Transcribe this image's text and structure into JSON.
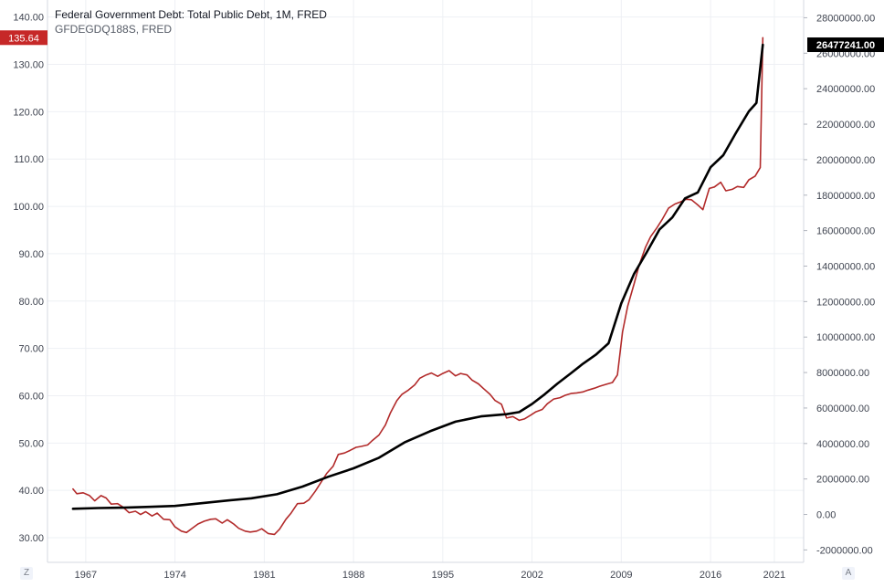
{
  "legend": {
    "line1": "Federal Government Debt: Total Public Debt, 1M, FRED",
    "line2": "GFDEGDQ188S, FRED"
  },
  "corner": {
    "left": "Z",
    "right": "A"
  },
  "colors": {
    "left_series": "#b22a2a",
    "right_series": "#000000",
    "grid": "#eef0f4",
    "axis_text": "#3f4450",
    "left_badge": "#c62828",
    "right_badge": "#000000"
  },
  "chart_data": {
    "type": "line",
    "xlabel": "",
    "ylabel": "",
    "x_ticks": [
      "1967",
      "1974",
      "1981",
      "1988",
      "1995",
      "2002",
      "2009",
      "2016",
      "2021"
    ],
    "x_tick_values": [
      1967,
      1974,
      1981,
      1988,
      1995,
      2002,
      2009,
      2016,
      2021
    ],
    "xlim": [
      1964.0,
      2023.3
    ],
    "left_axis": {
      "ylim": [
        24.8,
        143.6
      ],
      "ticks": [
        "30.00",
        "40.00",
        "50.00",
        "60.00",
        "70.00",
        "80.00",
        "90.00",
        "100.00",
        "110.00",
        "120.00",
        "130.00",
        "140.00"
      ],
      "tick_values": [
        30,
        40,
        50,
        60,
        70,
        80,
        90,
        100,
        110,
        120,
        130,
        140
      ],
      "last_value_label": "135.64",
      "last_value": 135.64
    },
    "right_axis": {
      "ylim": [
        -2700000,
        29000000
      ],
      "ticks": [
        "-2000000.00",
        "0.00",
        "2000000.00",
        "4000000.00",
        "6000000.00",
        "8000000.00",
        "10000000.00",
        "12000000.00",
        "14000000.00",
        "16000000.00",
        "18000000.00",
        "20000000.00",
        "22000000.00",
        "24000000.00",
        "26000000.00",
        "28000000.00"
      ],
      "tick_values": [
        -2000000,
        0,
        2000000,
        4000000,
        6000000,
        8000000,
        10000000,
        12000000,
        14000000,
        16000000,
        18000000,
        20000000,
        22000000,
        24000000,
        26000000,
        28000000
      ],
      "last_value_label": "26477241.00",
      "last_value": 26477241
    },
    "series": [
      {
        "axis": "left",
        "points": [
          [
            1966.0,
            40.3
          ],
          [
            1966.3,
            39.3
          ],
          [
            1966.8,
            39.5
          ],
          [
            1967.3,
            38.9
          ],
          [
            1967.7,
            37.8
          ],
          [
            1968.2,
            38.9
          ],
          [
            1968.6,
            38.4
          ],
          [
            1969.0,
            37.1
          ],
          [
            1969.5,
            37.2
          ],
          [
            1969.9,
            36.5
          ],
          [
            1970.4,
            35.3
          ],
          [
            1970.9,
            35.6
          ],
          [
            1971.3,
            34.9
          ],
          [
            1971.7,
            35.5
          ],
          [
            1972.2,
            34.6
          ],
          [
            1972.6,
            35.2
          ],
          [
            1973.1,
            33.9
          ],
          [
            1973.6,
            33.8
          ],
          [
            1974.0,
            32.3
          ],
          [
            1974.5,
            31.4
          ],
          [
            1974.9,
            31.1
          ],
          [
            1975.4,
            32.1
          ],
          [
            1975.8,
            32.9
          ],
          [
            1976.3,
            33.5
          ],
          [
            1976.8,
            33.9
          ],
          [
            1977.2,
            34.0
          ],
          [
            1977.7,
            33.1
          ],
          [
            1978.1,
            33.8
          ],
          [
            1978.6,
            32.9
          ],
          [
            1979.0,
            32.0
          ],
          [
            1979.5,
            31.4
          ],
          [
            1979.9,
            31.2
          ],
          [
            1980.4,
            31.4
          ],
          [
            1980.8,
            31.9
          ],
          [
            1981.3,
            30.9
          ],
          [
            1981.8,
            30.7
          ],
          [
            1982.2,
            31.8
          ],
          [
            1982.7,
            33.9
          ],
          [
            1983.1,
            35.2
          ],
          [
            1983.6,
            37.2
          ],
          [
            1984.1,
            37.3
          ],
          [
            1984.5,
            38.0
          ],
          [
            1985.0,
            39.8
          ],
          [
            1985.4,
            41.5
          ],
          [
            1985.9,
            43.6
          ],
          [
            1986.4,
            45.1
          ],
          [
            1986.8,
            47.6
          ],
          [
            1987.3,
            47.9
          ],
          [
            1987.7,
            48.4
          ],
          [
            1988.2,
            49.1
          ],
          [
            1988.6,
            49.3
          ],
          [
            1989.1,
            49.6
          ],
          [
            1989.5,
            50.6
          ],
          [
            1990.0,
            51.7
          ],
          [
            1990.5,
            53.8
          ],
          [
            1990.9,
            56.4
          ],
          [
            1991.4,
            59.0
          ],
          [
            1991.8,
            60.3
          ],
          [
            1992.3,
            61.2
          ],
          [
            1992.8,
            62.3
          ],
          [
            1993.2,
            63.7
          ],
          [
            1993.7,
            64.4
          ],
          [
            1994.1,
            64.8
          ],
          [
            1994.6,
            64.1
          ],
          [
            1995.0,
            64.7
          ],
          [
            1995.5,
            65.3
          ],
          [
            1996.0,
            64.2
          ],
          [
            1996.4,
            64.7
          ],
          [
            1996.9,
            64.4
          ],
          [
            1997.3,
            63.3
          ],
          [
            1997.8,
            62.5
          ],
          [
            1998.2,
            61.5
          ],
          [
            1998.7,
            60.3
          ],
          [
            1999.1,
            59.0
          ],
          [
            1999.6,
            58.2
          ],
          [
            2000.0,
            55.3
          ],
          [
            2000.5,
            55.6
          ],
          [
            2001.0,
            54.8
          ],
          [
            2001.4,
            55.1
          ],
          [
            2001.9,
            55.9
          ],
          [
            2002.3,
            56.6
          ],
          [
            2002.8,
            57.1
          ],
          [
            2003.2,
            58.3
          ],
          [
            2003.7,
            59.3
          ],
          [
            2004.2,
            59.6
          ],
          [
            2004.6,
            60.1
          ],
          [
            2005.1,
            60.5
          ],
          [
            2005.5,
            60.6
          ],
          [
            2006.0,
            60.8
          ],
          [
            2006.4,
            61.2
          ],
          [
            2006.9,
            61.6
          ],
          [
            2007.3,
            62.0
          ],
          [
            2007.8,
            62.4
          ],
          [
            2008.3,
            62.8
          ],
          [
            2008.7,
            64.4
          ],
          [
            2009.1,
            73.5
          ],
          [
            2009.5,
            78.9
          ],
          [
            2010.0,
            83.6
          ],
          [
            2010.4,
            87.6
          ],
          [
            2010.9,
            91.4
          ],
          [
            2011.3,
            93.6
          ],
          [
            2011.8,
            95.5
          ],
          [
            2012.2,
            97.2
          ],
          [
            2012.7,
            99.6
          ],
          [
            2013.2,
            100.5
          ],
          [
            2013.6,
            100.9
          ],
          [
            2014.1,
            101.5
          ],
          [
            2014.5,
            101.4
          ],
          [
            2015.0,
            100.3
          ],
          [
            2015.4,
            99.3
          ],
          [
            2015.9,
            103.8
          ],
          [
            2016.3,
            104.1
          ],
          [
            2016.8,
            105.1
          ],
          [
            2017.2,
            103.3
          ],
          [
            2017.7,
            103.6
          ],
          [
            2018.1,
            104.2
          ],
          [
            2018.6,
            104.0
          ],
          [
            2019.0,
            105.6
          ],
          [
            2019.5,
            106.4
          ],
          [
            2019.9,
            108.2
          ],
          [
            2020.1,
            135.64
          ]
        ]
      },
      {
        "axis": "right",
        "points": [
          [
            1966.0,
            320000
          ],
          [
            1968.0,
            360000
          ],
          [
            1970.0,
            380000
          ],
          [
            1972.0,
            430000
          ],
          [
            1974.0,
            480000
          ],
          [
            1976.0,
            630000
          ],
          [
            1978.0,
            780000
          ],
          [
            1980.0,
            910000
          ],
          [
            1982.0,
            1140000
          ],
          [
            1984.0,
            1570000
          ],
          [
            1986.0,
            2120000
          ],
          [
            1988.0,
            2600000
          ],
          [
            1990.0,
            3200000
          ],
          [
            1992.0,
            4060000
          ],
          [
            1994.0,
            4690000
          ],
          [
            1996.0,
            5230000
          ],
          [
            1998.0,
            5530000
          ],
          [
            2000.0,
            5650000
          ],
          [
            2001.0,
            5770000
          ],
          [
            2002.0,
            6230000
          ],
          [
            2003.0,
            6780000
          ],
          [
            2004.0,
            7380000
          ],
          [
            2005.0,
            7930000
          ],
          [
            2006.0,
            8500000
          ],
          [
            2007.0,
            9000000
          ],
          [
            2008.0,
            9650000
          ],
          [
            2009.0,
            11900000
          ],
          [
            2010.0,
            13560000
          ],
          [
            2011.0,
            14790000
          ],
          [
            2012.0,
            16070000
          ],
          [
            2013.0,
            16740000
          ],
          [
            2014.0,
            17820000
          ],
          [
            2015.0,
            18150000
          ],
          [
            2016.0,
            19570000
          ],
          [
            2017.0,
            20250000
          ],
          [
            2018.0,
            21520000
          ],
          [
            2019.0,
            22720000
          ],
          [
            2019.6,
            23200000
          ],
          [
            2020.1,
            26477241
          ]
        ]
      }
    ]
  }
}
